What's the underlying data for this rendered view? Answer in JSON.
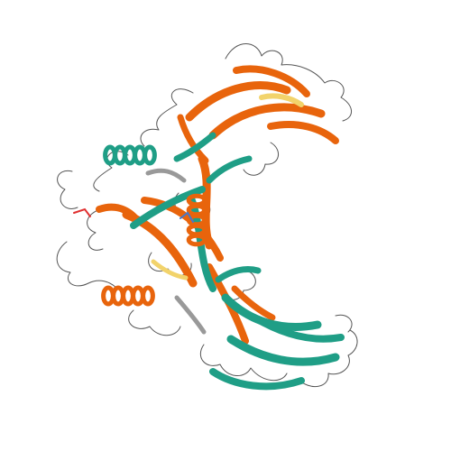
{
  "image": {
    "subject": "protein-ribbon-structure",
    "background": "#ffffff",
    "chains": [
      {
        "name": "chain-a",
        "color": "#e8640c"
      },
      {
        "name": "chain-b",
        "color": "#1f9e86"
      }
    ],
    "coil_color": "#555555",
    "accent_colors": [
      "#f2d36b",
      "#e03030",
      "#4477cc",
      "#999999"
    ]
  }
}
